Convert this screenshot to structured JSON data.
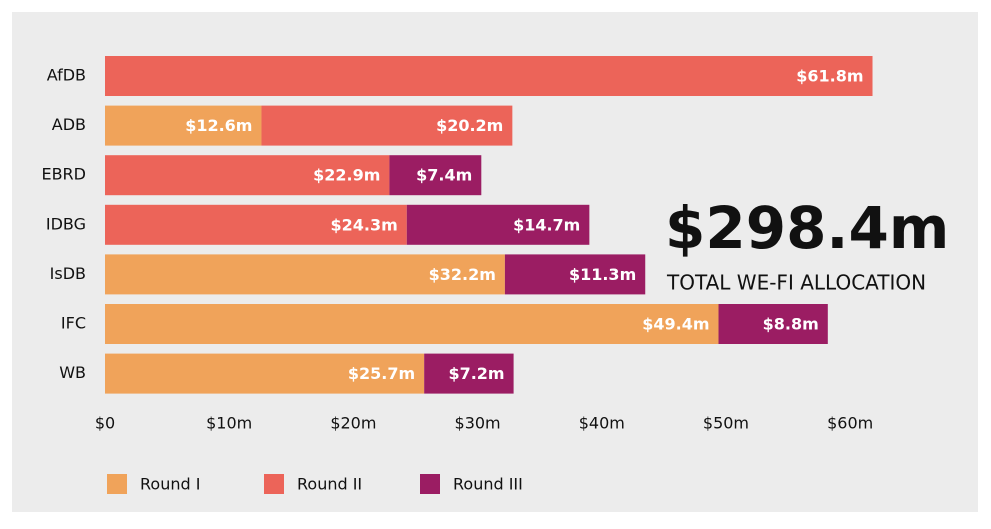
{
  "chart_data": {
    "type": "hbar_stacked",
    "categories": [
      "AfDB",
      "ADB",
      "EBRD",
      "IDBG",
      "IsDB",
      "IFC",
      "WB"
    ],
    "series": [
      {
        "name": "Round I",
        "color": "#f0a35a",
        "values": [
          null,
          12.6,
          null,
          null,
          32.2,
          49.4,
          25.7
        ],
        "value_labels": [
          null,
          "$12.6m",
          null,
          null,
          "$32.2m",
          "$49.4m",
          "$25.7m"
        ]
      },
      {
        "name": "Round II",
        "color": "#ec6459",
        "values": [
          61.8,
          20.2,
          22.9,
          24.3,
          null,
          null,
          null
        ],
        "value_labels": [
          "$61.8m",
          "$20.2m",
          "$22.9m",
          "$24.3m",
          null,
          null,
          null
        ]
      },
      {
        "name": "Round III",
        "color": "#9b1d63",
        "values": [
          null,
          null,
          7.4,
          14.7,
          11.3,
          8.8,
          7.2
        ],
        "value_labels": [
          null,
          null,
          "$7.4m",
          "$14.7m",
          "$11.3m",
          "$8.8m",
          "$7.2m"
        ]
      }
    ],
    "xlim": [
      0,
      62
    ],
    "xticks": [
      {
        "value": 0,
        "label": "$0"
      },
      {
        "value": 10,
        "label": "$10m"
      },
      {
        "value": 20,
        "label": "$20m"
      },
      {
        "value": 30,
        "label": "$30m"
      },
      {
        "value": 40,
        "label": "$40m"
      },
      {
        "value": 50,
        "label": "$50m"
      },
      {
        "value": 60,
        "label": "$60m"
      }
    ],
    "annotations": [
      "$298.4m",
      "TOTAL WE-FI ALLOCATION"
    ],
    "legend": "bottom"
  }
}
